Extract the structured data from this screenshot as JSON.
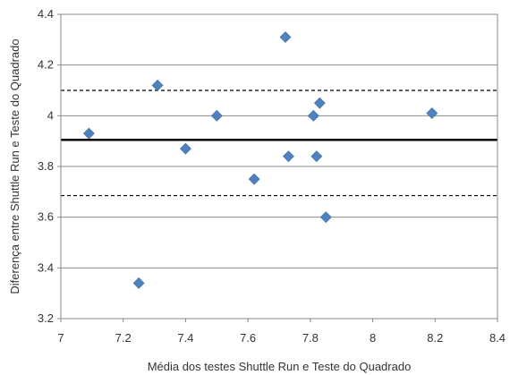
{
  "chart_data": {
    "type": "scatter",
    "xlabel": "Média dos testes Shuttle Run e Teste do Quadrado",
    "ylabel": "Diferença entre Shuttle Run e Teste do Quadrado",
    "xlim": [
      7,
      8.4
    ],
    "ylim": [
      3.2,
      4.4
    ],
    "x_ticks": [
      "7",
      "7.2",
      "7.4",
      "7.6",
      "7.8",
      "8",
      "8.2",
      "8.4"
    ],
    "y_ticks": [
      "3.2",
      "3.4",
      "3.6",
      "3.8",
      "4",
      "4.2",
      "4.4"
    ],
    "grid": "horizontal",
    "legend": "none",
    "marker": "diamond",
    "marker_color": "#4f81bd",
    "points": [
      {
        "x": 7.09,
        "y": 3.93
      },
      {
        "x": 7.25,
        "y": 3.34
      },
      {
        "x": 7.31,
        "y": 4.12
      },
      {
        "x": 7.4,
        "y": 3.87
      },
      {
        "x": 7.5,
        "y": 4.0
      },
      {
        "x": 7.62,
        "y": 3.75
      },
      {
        "x": 7.72,
        "y": 4.31
      },
      {
        "x": 7.73,
        "y": 3.84
      },
      {
        "x": 7.81,
        "y": 4.0
      },
      {
        "x": 7.82,
        "y": 3.84
      },
      {
        "x": 7.83,
        "y": 4.05
      },
      {
        "x": 7.85,
        "y": 3.6
      },
      {
        "x": 8.19,
        "y": 4.01
      }
    ],
    "reference_lines": [
      {
        "kind": "mean",
        "y": 3.905,
        "style": "solid"
      },
      {
        "kind": "upper-limit",
        "y": 4.1,
        "style": "dashed"
      },
      {
        "kind": "lower-limit",
        "y": 3.685,
        "style": "dashed"
      }
    ]
  }
}
